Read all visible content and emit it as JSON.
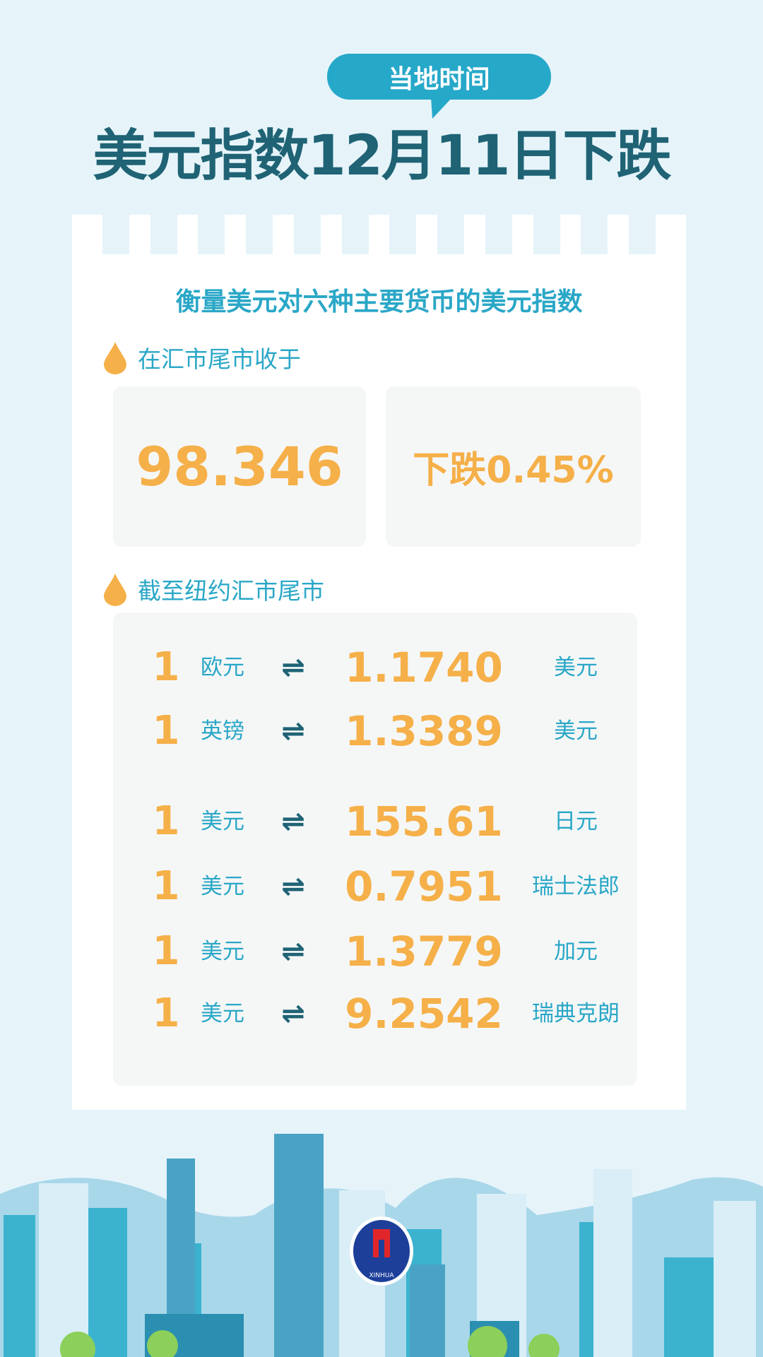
{
  "header": {
    "badge": "当地时间",
    "title": "美元指数12月11日下跌"
  },
  "card": {
    "subtitle": "衡量美元对六种主要货币的美元指数",
    "section1": {
      "label": "在汇市尾市收于",
      "index_value": "98.346",
      "change": "下跌0.45%"
    },
    "section2": {
      "label": "截至纽约汇市尾市",
      "rates": [
        {
          "amount": "1",
          "from": "欧元",
          "arrow": "⇌",
          "value": "1.1740",
          "to": "美元"
        },
        {
          "amount": "1",
          "from": "英镑",
          "arrow": "⇌",
          "value": "1.3389",
          "to": "美元"
        },
        {
          "amount": "1",
          "from": "美元",
          "arrow": "⇌",
          "value": "155.61",
          "to": "日元"
        },
        {
          "amount": "1",
          "from": "美元",
          "arrow": "⇌",
          "value": "0.7951",
          "to": "瑞士法郎"
        },
        {
          "amount": "1",
          "from": "美元",
          "arrow": "⇌",
          "value": "1.3779",
          "to": "加元"
        },
        {
          "amount": "1",
          "from": "美元",
          "arrow": "⇌",
          "value": "9.2542",
          "to": "瑞典克朗"
        }
      ]
    }
  },
  "footer": {
    "logo_text": "XINHUA"
  },
  "colors": {
    "accent": "#26a8c9",
    "title": "#1f6375",
    "number": "#f5b049",
    "background": "#e6f4fa"
  }
}
